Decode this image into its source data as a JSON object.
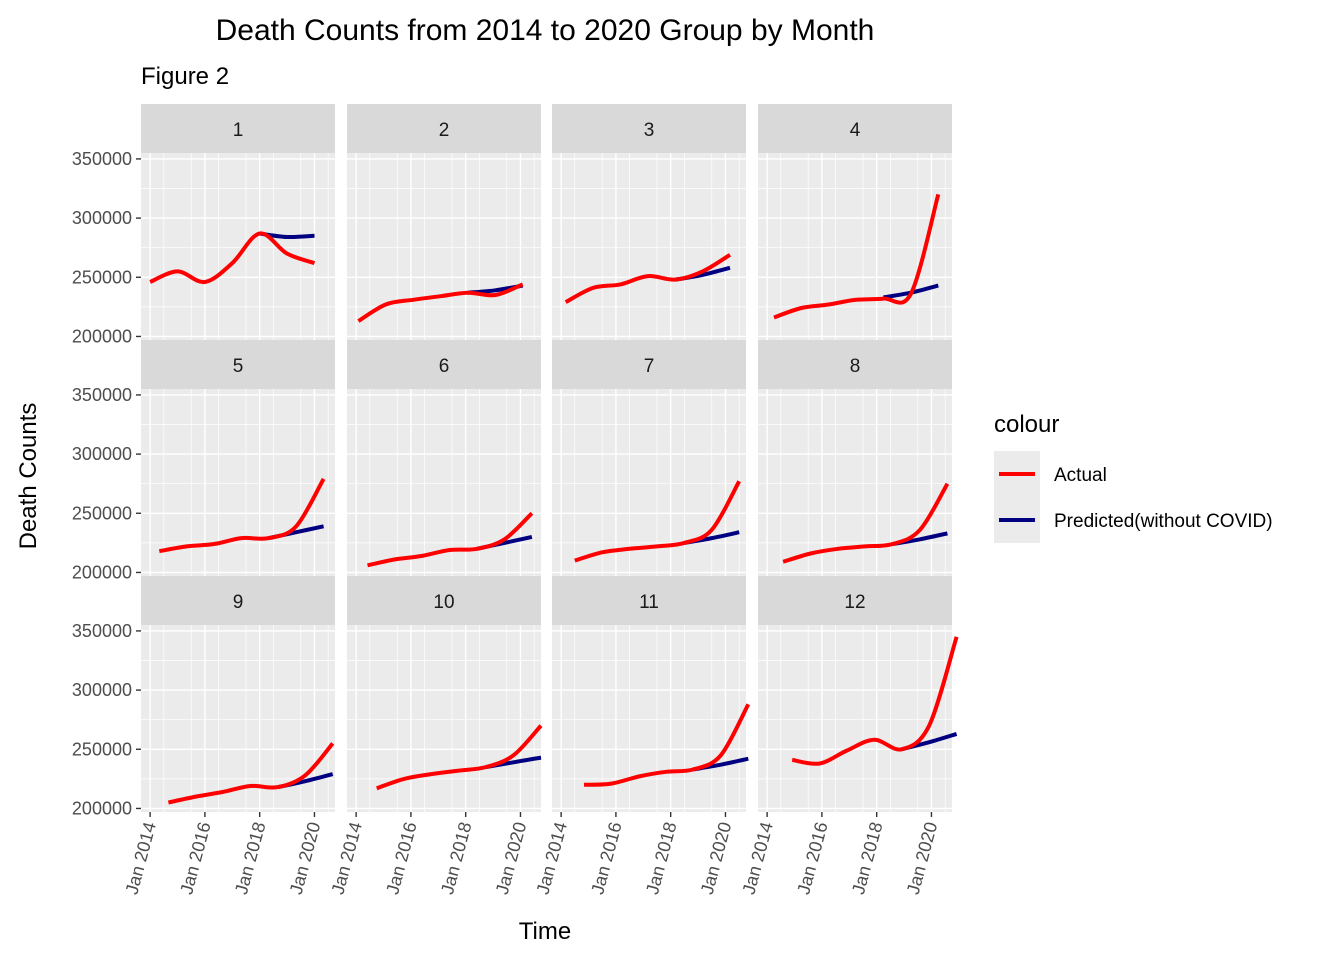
{
  "chart_data": {
    "type": "line",
    "title": "Death Counts from 2014 to 2020 Group by Month",
    "subtitle": "Figure 2",
    "xlabel": "Time",
    "ylabel": "Death Counts",
    "x_ticks": [
      "Jan 2014",
      "Jan 2016",
      "Jan 2018",
      "Jan 2020"
    ],
    "y_ticks": [
      "200000",
      "250000",
      "300000",
      "350000"
    ],
    "xlim": [
      "2013-09",
      "2020-10"
    ],
    "ylim": [
      197000,
      355000
    ],
    "legend": {
      "title": "colour",
      "position": "right",
      "items": [
        {
          "name": "Actual",
          "color": "#ff0000"
        },
        {
          "name": "Predicted(without COVID)",
          "color": "#000080"
        }
      ]
    },
    "panels": [
      {
        "label": "1",
        "actual": {
          "x": [
            "2014-01",
            "2015-01",
            "2016-01",
            "2017-01",
            "2018-01",
            "2019-01",
            "2020-01"
          ],
          "y": [
            246000,
            255000,
            246000,
            262000,
            287000,
            270000,
            262000
          ]
        },
        "predicted": {
          "x": [
            "2018-01",
            "2019-01",
            "2020-01"
          ],
          "y": [
            287000,
            284000,
            285000
          ]
        }
      },
      {
        "label": "2",
        "actual": {
          "x": [
            "2014-02",
            "2015-02",
            "2016-02",
            "2017-02",
            "2018-02",
            "2019-02",
            "2020-02"
          ],
          "y": [
            213000,
            227000,
            231000,
            234000,
            237000,
            235000,
            244000
          ]
        },
        "predicted": {
          "x": [
            "2018-02",
            "2019-02",
            "2020-02"
          ],
          "y": [
            237000,
            239000,
            243000
          ]
        }
      },
      {
        "label": "3",
        "actual": {
          "x": [
            "2014-03",
            "2015-03",
            "2016-03",
            "2017-03",
            "2018-03",
            "2019-03",
            "2020-03"
          ],
          "y": [
            229000,
            241000,
            244000,
            251000,
            248000,
            255000,
            269000
          ]
        },
        "predicted": {
          "x": [
            "2018-03",
            "2019-03",
            "2020-03"
          ],
          "y": [
            248000,
            252000,
            258000
          ]
        }
      },
      {
        "label": "4",
        "actual": {
          "x": [
            "2014-04",
            "2015-04",
            "2016-04",
            "2017-04",
            "2018-04",
            "2019-04",
            "2020-04"
          ],
          "y": [
            216000,
            224000,
            227000,
            231000,
            232000,
            236000,
            320000
          ]
        },
        "predicted": {
          "x": [
            "2018-04",
            "2019-04",
            "2020-04"
          ],
          "y": [
            233000,
            237000,
            243000
          ]
        }
      },
      {
        "label": "5",
        "actual": {
          "x": [
            "2014-05",
            "2015-05",
            "2016-05",
            "2017-05",
            "2018-05",
            "2019-05",
            "2020-05"
          ],
          "y": [
            218000,
            222000,
            224000,
            229000,
            229000,
            239000,
            279000
          ]
        },
        "predicted": {
          "x": [
            "2018-05",
            "2019-05",
            "2020-05"
          ],
          "y": [
            229000,
            234000,
            239000
          ]
        }
      },
      {
        "label": "6",
        "actual": {
          "x": [
            "2014-06",
            "2015-06",
            "2016-06",
            "2017-06",
            "2018-06",
            "2019-06",
            "2020-06"
          ],
          "y": [
            206000,
            211000,
            214000,
            219000,
            220000,
            228000,
            250000
          ]
        },
        "predicted": {
          "x": [
            "2018-06",
            "2019-06",
            "2020-06"
          ],
          "y": [
            220000,
            225000,
            230000
          ]
        }
      },
      {
        "label": "7",
        "actual": {
          "x": [
            "2014-07",
            "2015-07",
            "2016-07",
            "2017-07",
            "2018-07",
            "2019-07",
            "2020-07"
          ],
          "y": [
            210000,
            217000,
            220000,
            222000,
            225000,
            236000,
            277000
          ]
        },
        "predicted": {
          "x": [
            "2018-07",
            "2019-07",
            "2020-07"
          ],
          "y": [
            225000,
            229000,
            234000
          ]
        }
      },
      {
        "label": "8",
        "actual": {
          "x": [
            "2014-08",
            "2015-08",
            "2016-08",
            "2017-08",
            "2018-08",
            "2019-08",
            "2020-08"
          ],
          "y": [
            209000,
            216000,
            220000,
            222000,
            224000,
            236000,
            275000
          ]
        },
        "predicted": {
          "x": [
            "2018-08",
            "2019-08",
            "2020-08"
          ],
          "y": [
            224000,
            228000,
            233000
          ]
        }
      },
      {
        "label": "9",
        "actual": {
          "x": [
            "2014-09",
            "2015-09",
            "2016-09",
            "2017-09",
            "2018-09",
            "2019-09",
            "2020-09"
          ],
          "y": [
            205000,
            210000,
            214000,
            219000,
            218000,
            228000,
            255000
          ]
        },
        "predicted": {
          "x": [
            "2018-09",
            "2019-09",
            "2020-09"
          ],
          "y": [
            218000,
            223000,
            229000
          ]
        }
      },
      {
        "label": "10",
        "actual": {
          "x": [
            "2014-10",
            "2015-10",
            "2016-10",
            "2017-10",
            "2018-10",
            "2019-10",
            "2020-10"
          ],
          "y": [
            217000,
            225000,
            229000,
            232000,
            235000,
            245000,
            270000
          ]
        },
        "predicted": {
          "x": [
            "2018-10",
            "2019-10",
            "2020-10"
          ],
          "y": [
            235000,
            239000,
            243000
          ]
        }
      },
      {
        "label": "11",
        "actual": {
          "x": [
            "2014-11",
            "2015-11",
            "2016-11",
            "2017-11",
            "2018-11",
            "2019-11",
            "2020-11"
          ],
          "y": [
            220000,
            221000,
            227000,
            231000,
            233000,
            245000,
            288000
          ]
        },
        "predicted": {
          "x": [
            "2018-11",
            "2019-11",
            "2020-11"
          ],
          "y": [
            233000,
            237000,
            242000
          ]
        }
      },
      {
        "label": "12",
        "actual": {
          "x": [
            "2014-12",
            "2015-12",
            "2016-12",
            "2017-12",
            "2018-12",
            "2019-12",
            "2020-12"
          ],
          "y": [
            241000,
            238000,
            249000,
            258000,
            250000,
            270000,
            345000
          ]
        },
        "predicted": {
          "x": [
            "2018-12",
            "2019-12",
            "2020-12"
          ],
          "y": [
            250000,
            256000,
            263000
          ]
        }
      }
    ]
  }
}
